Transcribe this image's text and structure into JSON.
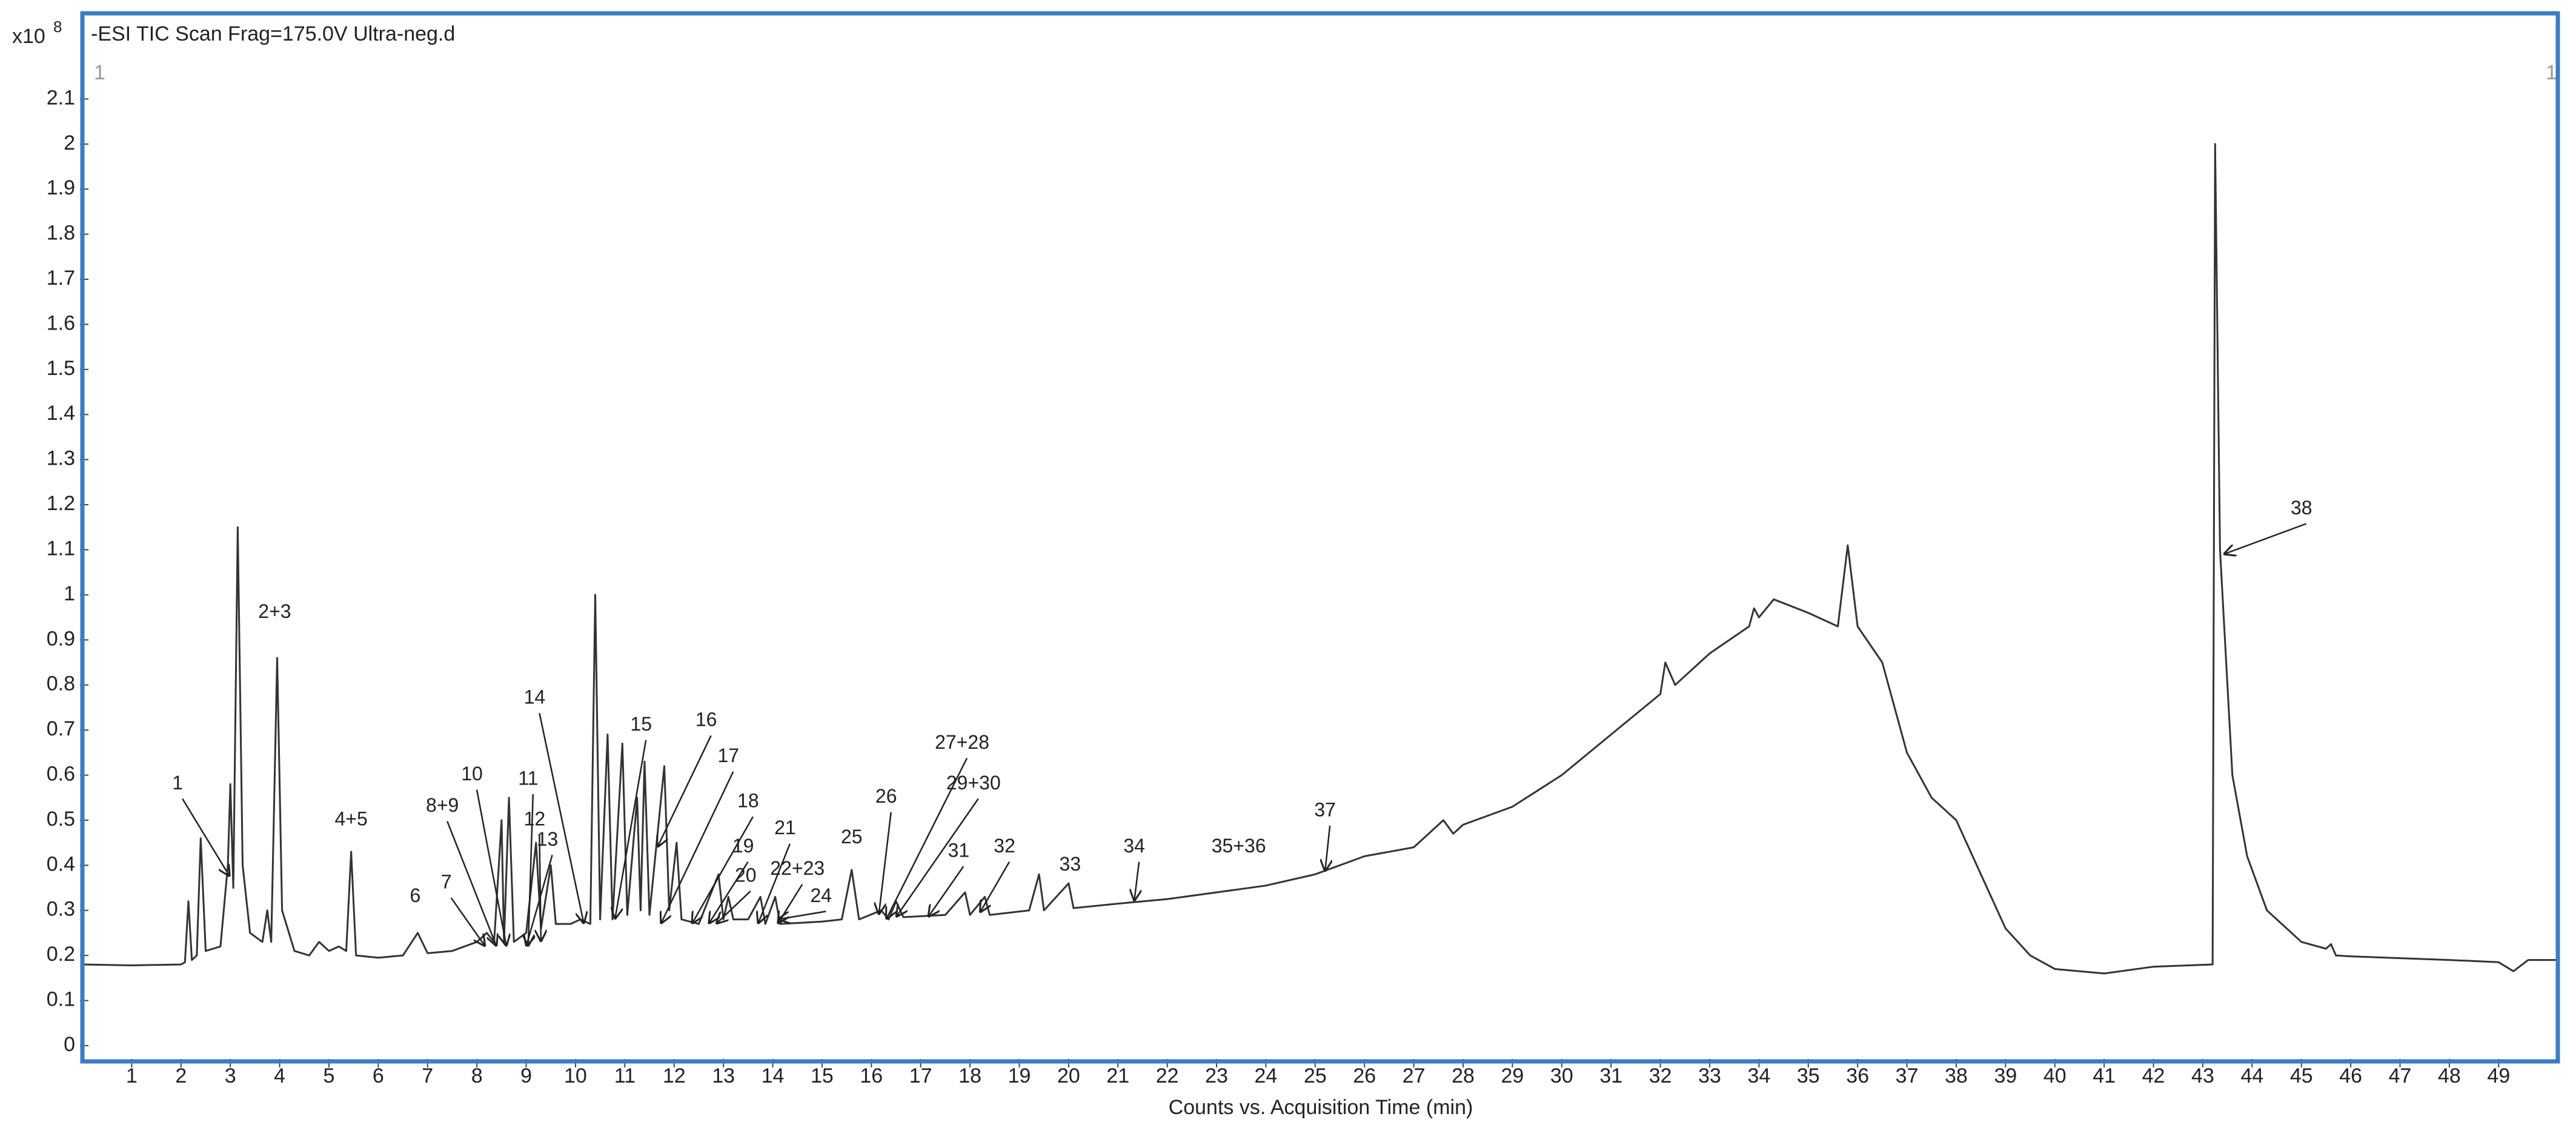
{
  "chart_data": {
    "type": "line",
    "title": "-ESI TIC Scan Frag=175.0V Ultra-neg.d",
    "x_label": "Counts vs. Acquisition Time (min)",
    "y_unit": "x10",
    "y_exponent": "8",
    "corner_labels": [
      "1",
      "1"
    ],
    "color": "#333333",
    "frame_color": "#3b7dc4",
    "x": [
      0,
      1,
      2,
      2.08,
      2.15,
      2.22,
      2.32,
      2.4,
      2.5,
      2.8,
      2.95,
      3.0,
      3.06,
      3.15,
      3.25,
      3.4,
      3.65,
      3.75,
      3.83,
      3.95,
      4.05,
      4.3,
      4.6,
      4.8,
      5.0,
      5.2,
      5.35,
      5.45,
      5.55,
      6.0,
      6.5,
      6.8,
      7.0,
      7.5,
      8.0,
      8.2,
      8.35,
      8.5,
      8.55,
      8.65,
      8.75,
      9.0,
      9.2,
      9.3,
      9.5,
      9.6,
      9.9,
      10.1,
      10.3,
      10.4,
      10.5,
      10.65,
      10.75,
      10.95,
      11.05,
      11.25,
      11.32,
      11.4,
      11.5,
      11.8,
      11.9,
      12.05,
      12.15,
      12.5,
      12.9,
      13.0,
      13.1,
      13.2,
      13.5,
      13.75,
      13.85,
      14.05,
      14.15,
      15.0,
      15.4,
      15.6,
      15.75,
      16.2,
      16.35,
      16.5,
      16.65,
      17.5,
      17.9,
      18.0,
      18.3,
      18.4,
      19.2,
      19.4,
      19.5,
      20.0,
      20.1,
      21,
      22,
      23,
      24,
      25,
      26,
      27,
      27.6,
      27.8,
      28,
      29,
      30,
      31,
      32,
      32.1,
      32.3,
      33,
      33.8,
      33.9,
      34,
      34.3,
      35,
      35.6,
      35.8,
      36,
      36.5,
      37,
      37.5,
      38,
      38.5,
      39,
      39.5,
      40,
      41,
      42,
      43.2,
      43.25,
      43.35,
      43.6,
      43.9,
      44.3,
      45,
      45.5,
      45.6,
      45.7,
      46,
      48,
      49,
      49.3,
      49.6,
      50.2
    ],
    "values": [
      0.18,
      0.178,
      0.18,
      0.185,
      0.32,
      0.19,
      0.2,
      0.46,
      0.21,
      0.22,
      0.4,
      0.58,
      0.35,
      1.15,
      0.4,
      0.25,
      0.23,
      0.3,
      0.23,
      0.86,
      0.3,
      0.21,
      0.2,
      0.23,
      0.21,
      0.22,
      0.21,
      0.43,
      0.2,
      0.195,
      0.2,
      0.25,
      0.205,
      0.21,
      0.23,
      0.25,
      0.23,
      0.5,
      0.23,
      0.55,
      0.23,
      0.25,
      0.45,
      0.26,
      0.4,
      0.27,
      0.27,
      0.28,
      0.27,
      1.0,
      0.28,
      0.69,
      0.28,
      0.67,
      0.29,
      0.55,
      0.3,
      0.63,
      0.29,
      0.62,
      0.3,
      0.45,
      0.28,
      0.27,
      0.38,
      0.28,
      0.33,
      0.28,
      0.28,
      0.33,
      0.27,
      0.33,
      0.27,
      0.275,
      0.28,
      0.39,
      0.28,
      0.3,
      0.28,
      0.32,
      0.285,
      0.29,
      0.34,
      0.29,
      0.33,
      0.29,
      0.3,
      0.38,
      0.3,
      0.36,
      0.305,
      0.315,
      0.325,
      0.34,
      0.355,
      0.38,
      0.42,
      0.44,
      0.5,
      0.47,
      0.49,
      0.53,
      0.6,
      0.69,
      0.78,
      0.85,
      0.8,
      0.87,
      0.93,
      0.97,
      0.95,
      0.99,
      0.96,
      0.93,
      1.11,
      0.93,
      0.85,
      0.65,
      0.55,
      0.5,
      0.38,
      0.26,
      0.2,
      0.17,
      0.16,
      0.175,
      0.18,
      2.0,
      1.1,
      0.6,
      0.42,
      0.3,
      0.23,
      0.215,
      0.225,
      0.2,
      0.198,
      0.19,
      0.185,
      0.165,
      0.19,
      0.19
    ],
    "xlim": [
      0,
      50.2
    ],
    "ylim": [
      -0.035,
      2.29
    ],
    "xticks": [
      1,
      2,
      3,
      4,
      5,
      6,
      7,
      8,
      9,
      10,
      11,
      12,
      13,
      14,
      15,
      16,
      17,
      18,
      19,
      20,
      21,
      22,
      23,
      24,
      25,
      26,
      27,
      28,
      29,
      30,
      31,
      32,
      33,
      34,
      35,
      36,
      37,
      38,
      39,
      40,
      41,
      42,
      43,
      44,
      45,
      46,
      47,
      48,
      49
    ],
    "yticks": [
      0,
      0.1,
      0.2,
      0.3,
      0.4,
      0.5,
      0.6,
      0.7,
      0.8,
      0.9,
      1,
      1.1,
      1.2,
      1.3,
      1.4,
      1.5,
      1.6,
      1.7,
      1.8,
      1.9,
      2,
      2.1
    ],
    "grid": false,
    "annotations": [
      "1",
      "2+3",
      "4+5",
      "6",
      "7",
      "8+9",
      "10",
      "11",
      "12",
      "13",
      "14",
      "15",
      "16",
      "17",
      "18",
      "19",
      "20",
      "21",
      "22+23",
      "24",
      "25",
      "26",
      "27+28",
      "29+30",
      "31",
      "32",
      "33",
      "34",
      "35+36",
      "37",
      "38"
    ]
  }
}
